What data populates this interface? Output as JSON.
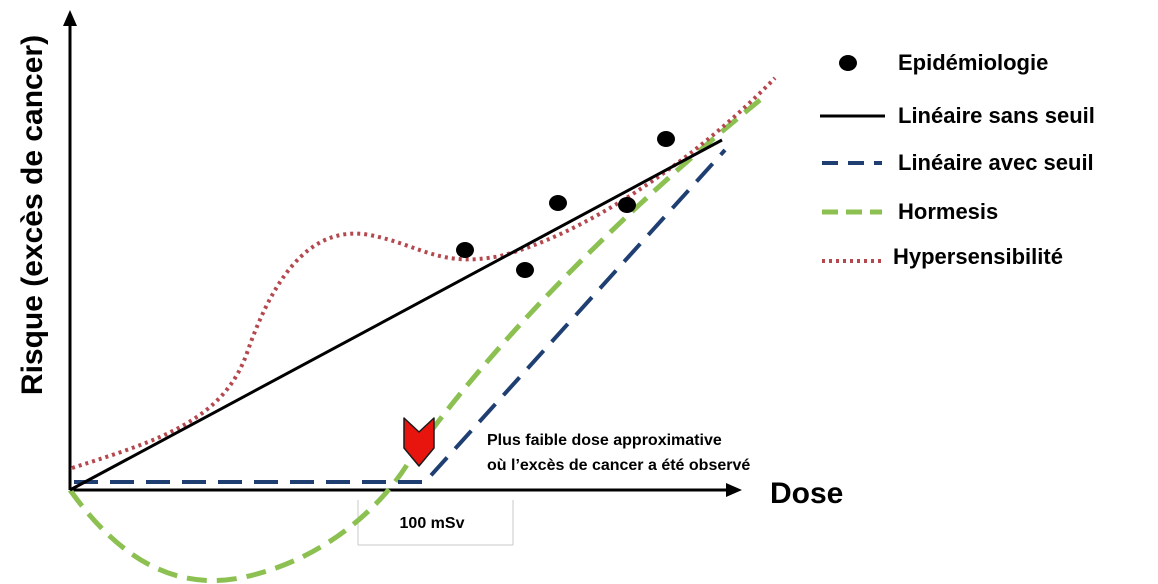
{
  "y_axis_label": "Risque (excès de cancer)",
  "x_axis_label": "Dose",
  "tick_label": "100 mSv",
  "annotation": {
    "line1": "Plus faible dose approximative",
    "line2": "où l’excès de cancer  a été observé"
  },
  "legend": [
    {
      "id": "epidemiologie",
      "label": "Epidémiologie",
      "marker": "dot",
      "color": "#000000"
    },
    {
      "id": "lineaire-sans-seuil",
      "label": "Linéaire sans seuil",
      "marker": "solid",
      "color": "#000000"
    },
    {
      "id": "lineaire-avec-seuil",
      "label": "Linéaire avec seuil",
      "marker": "dashed",
      "color": "#1f3f73"
    },
    {
      "id": "hormesis",
      "label": "Hormesis",
      "marker": "dashed",
      "color": "#8cc152"
    },
    {
      "id": "hypersensibilite",
      "label": "Hypersensibilité",
      "marker": "dotted",
      "color": "#b5484f"
    }
  ],
  "colors": {
    "axis": "#000000",
    "arrow_marker": "#e8150f",
    "tick_box_border": "#c8c8c8"
  }
}
